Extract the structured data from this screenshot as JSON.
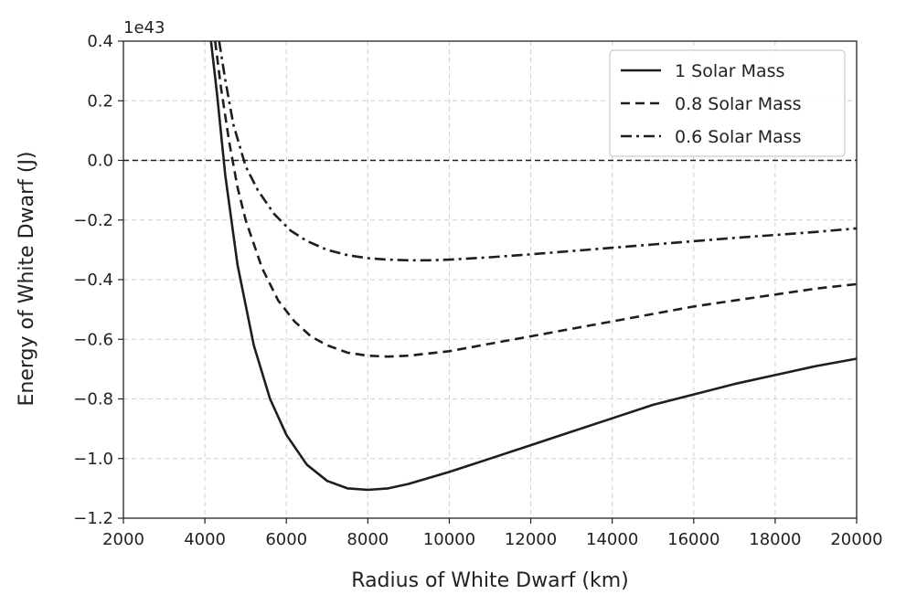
{
  "chart_data": {
    "type": "line",
    "xlabel": "Radius of White Dwarf (km)",
    "ylabel": "Energy of White Dwarf (J)",
    "y_offset_text": "1e43",
    "xlim": [
      2000,
      20000
    ],
    "ylim": [
      -1.2,
      0.4
    ],
    "x_ticks": [
      2000,
      4000,
      6000,
      8000,
      10000,
      12000,
      14000,
      16000,
      18000,
      20000
    ],
    "x_tick_labels": [
      "2000",
      "4000",
      "6000",
      "8000",
      "10000",
      "12000",
      "14000",
      "16000",
      "18000",
      "20000"
    ],
    "y_ticks": [
      0.4,
      0.2,
      0.0,
      -0.2,
      -0.4,
      -0.6,
      -0.8,
      -1.0,
      -1.2
    ],
    "y_tick_labels": [
      "0.4",
      "0.2",
      "0.0",
      "−0.2",
      "−0.4",
      "−0.6",
      "−0.8",
      "−1.0",
      "−1.2"
    ],
    "grid": true,
    "legend_position": "top-right",
    "reference_line": {
      "y": 0.0,
      "style": "dashed"
    },
    "series": [
      {
        "name": "1 Solar Mass",
        "line_style": "solid",
        "x": [
          4150,
          4300,
          4500,
          4800,
          5200,
          5600,
          6000,
          6500,
          7000,
          7500,
          8000,
          8500,
          9000,
          10000,
          11000,
          12000,
          13000,
          14000,
          15000,
          16000,
          17000,
          18000,
          19000,
          20000
        ],
        "y": [
          0.4,
          0.22,
          -0.05,
          -0.35,
          -0.62,
          -0.8,
          -0.92,
          -1.02,
          -1.075,
          -1.1,
          -1.105,
          -1.1,
          -1.085,
          -1.045,
          -1.0,
          -0.955,
          -0.91,
          -0.865,
          -0.82,
          -0.785,
          -0.75,
          -0.72,
          -0.69,
          -0.665
        ]
      },
      {
        "name": "0.8 Solar Mass",
        "line_style": "dashed",
        "x": [
          4250,
          4400,
          4600,
          4800,
          5000,
          5400,
          5800,
          6200,
          6600,
          7000,
          7500,
          8000,
          8500,
          9000,
          10000,
          11000,
          12000,
          13000,
          14000,
          15000,
          16000,
          17000,
          18000,
          19000,
          20000
        ],
        "y": [
          0.4,
          0.24,
          0.06,
          -0.09,
          -0.2,
          -0.36,
          -0.47,
          -0.54,
          -0.59,
          -0.62,
          -0.645,
          -0.655,
          -0.658,
          -0.655,
          -0.64,
          -0.615,
          -0.59,
          -0.565,
          -0.54,
          -0.515,
          -0.49,
          -0.47,
          -0.45,
          -0.43,
          -0.415
        ]
      },
      {
        "name": "0.6 Solar Mass",
        "line_style": "dash-dot",
        "x": [
          4350,
          4500,
          4700,
          5000,
          5300,
          5700,
          6100,
          6500,
          7000,
          7500,
          8000,
          8500,
          9000,
          9500,
          10000,
          11000,
          12000,
          13000,
          14000,
          15000,
          16000,
          17000,
          18000,
          19000,
          20000
        ],
        "y": [
          0.4,
          0.27,
          0.12,
          -0.02,
          -0.1,
          -0.18,
          -0.235,
          -0.27,
          -0.3,
          -0.318,
          -0.328,
          -0.333,
          -0.335,
          -0.335,
          -0.333,
          -0.325,
          -0.315,
          -0.304,
          -0.293,
          -0.282,
          -0.271,
          -0.26,
          -0.25,
          -0.24,
          -0.228
        ]
      }
    ]
  }
}
